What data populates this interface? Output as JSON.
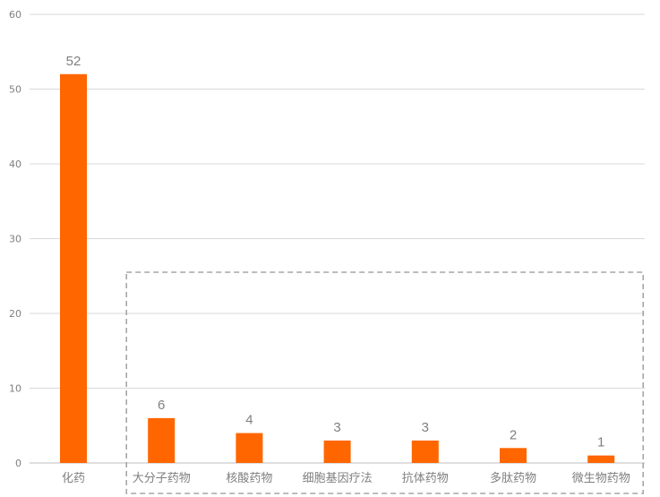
{
  "chart_data": {
    "type": "bar",
    "categories": [
      "化药",
      "大分子药物",
      "核酸药物",
      "细胞基因疗法",
      "抗体药物",
      "多肽药物",
      "微生物药物"
    ],
    "values": [
      52,
      6,
      4,
      3,
      3,
      2,
      1
    ],
    "y_ticks": [
      "0",
      "10",
      "20",
      "30",
      "40",
      "50",
      "60"
    ],
    "data_labels": [
      "52",
      "6",
      "4",
      "3",
      "3",
      "2",
      "1"
    ],
    "ylim": [
      0,
      60
    ],
    "grid": true,
    "legend": "none",
    "highlight_box": {
      "from_category": "大分子药物",
      "to_category": "微生物药物"
    },
    "colors": {
      "bar": "#ff6600",
      "grid": "#d9d9d9",
      "axis": "#bfbfbf",
      "text": "#7f7f7f",
      "box": "#a6a6a6"
    }
  }
}
